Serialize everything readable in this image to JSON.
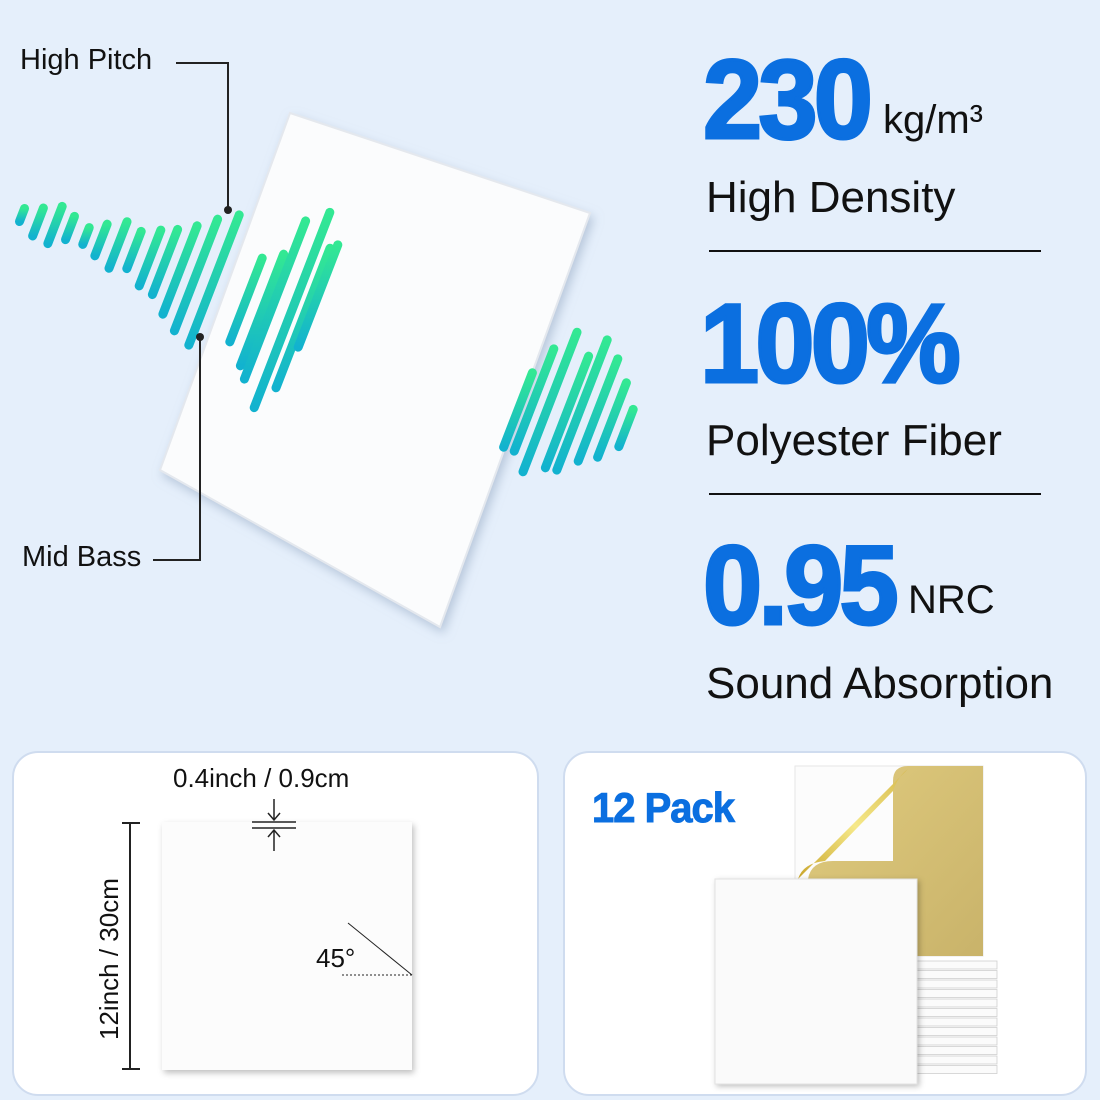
{
  "wave_labels": {
    "high": "High Pitch",
    "mid": "Mid Bass"
  },
  "specs": [
    {
      "value": "230",
      "unit": "kg/m³",
      "label": "High Density"
    },
    {
      "value": "100%",
      "unit": "",
      "label": "Polyester Fiber"
    },
    {
      "value": "0.95",
      "unit": "NRC",
      "label": "Sound Absorption"
    }
  ],
  "dimensions": {
    "thickness": "0.4inch / 0.9cm",
    "size": "12inch / 30cm",
    "angle": "45°"
  },
  "pack": {
    "label": "12 Pack"
  },
  "colors": {
    "accent": "#0b6fe0",
    "wave_top": "#33e893",
    "wave_bottom": "#12b2cf",
    "background": "#e5effb",
    "adhesive": "#d9c37a"
  }
}
